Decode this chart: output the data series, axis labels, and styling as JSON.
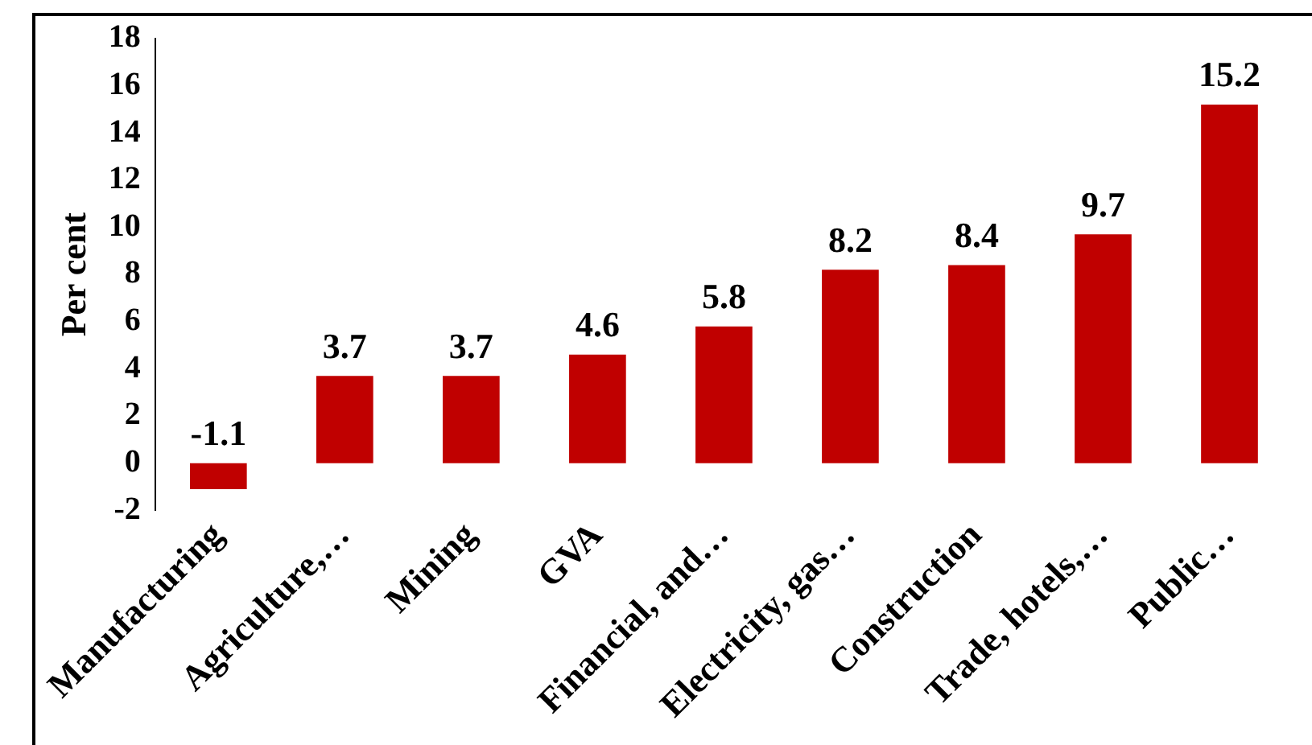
{
  "chart_data": {
    "type": "bar",
    "ylabel": "Per cent",
    "categories": [
      "Manufacturing",
      "Agriculture,…",
      "Mining",
      "GVA",
      "Financial, and…",
      "Electricity, gas…",
      "Construction",
      "Trade, hotels,…",
      "Public…"
    ],
    "values": [
      -1.1,
      3.7,
      3.7,
      4.6,
      5.8,
      8.2,
      8.4,
      9.7,
      15.2
    ],
    "color": "#c00000",
    "ylim": [
      -2,
      18
    ],
    "yticks": [
      -2,
      0,
      2,
      4,
      6,
      8,
      10,
      12,
      14,
      16,
      18
    ],
    "grid": false,
    "legend": false,
    "data_labels": true
  }
}
